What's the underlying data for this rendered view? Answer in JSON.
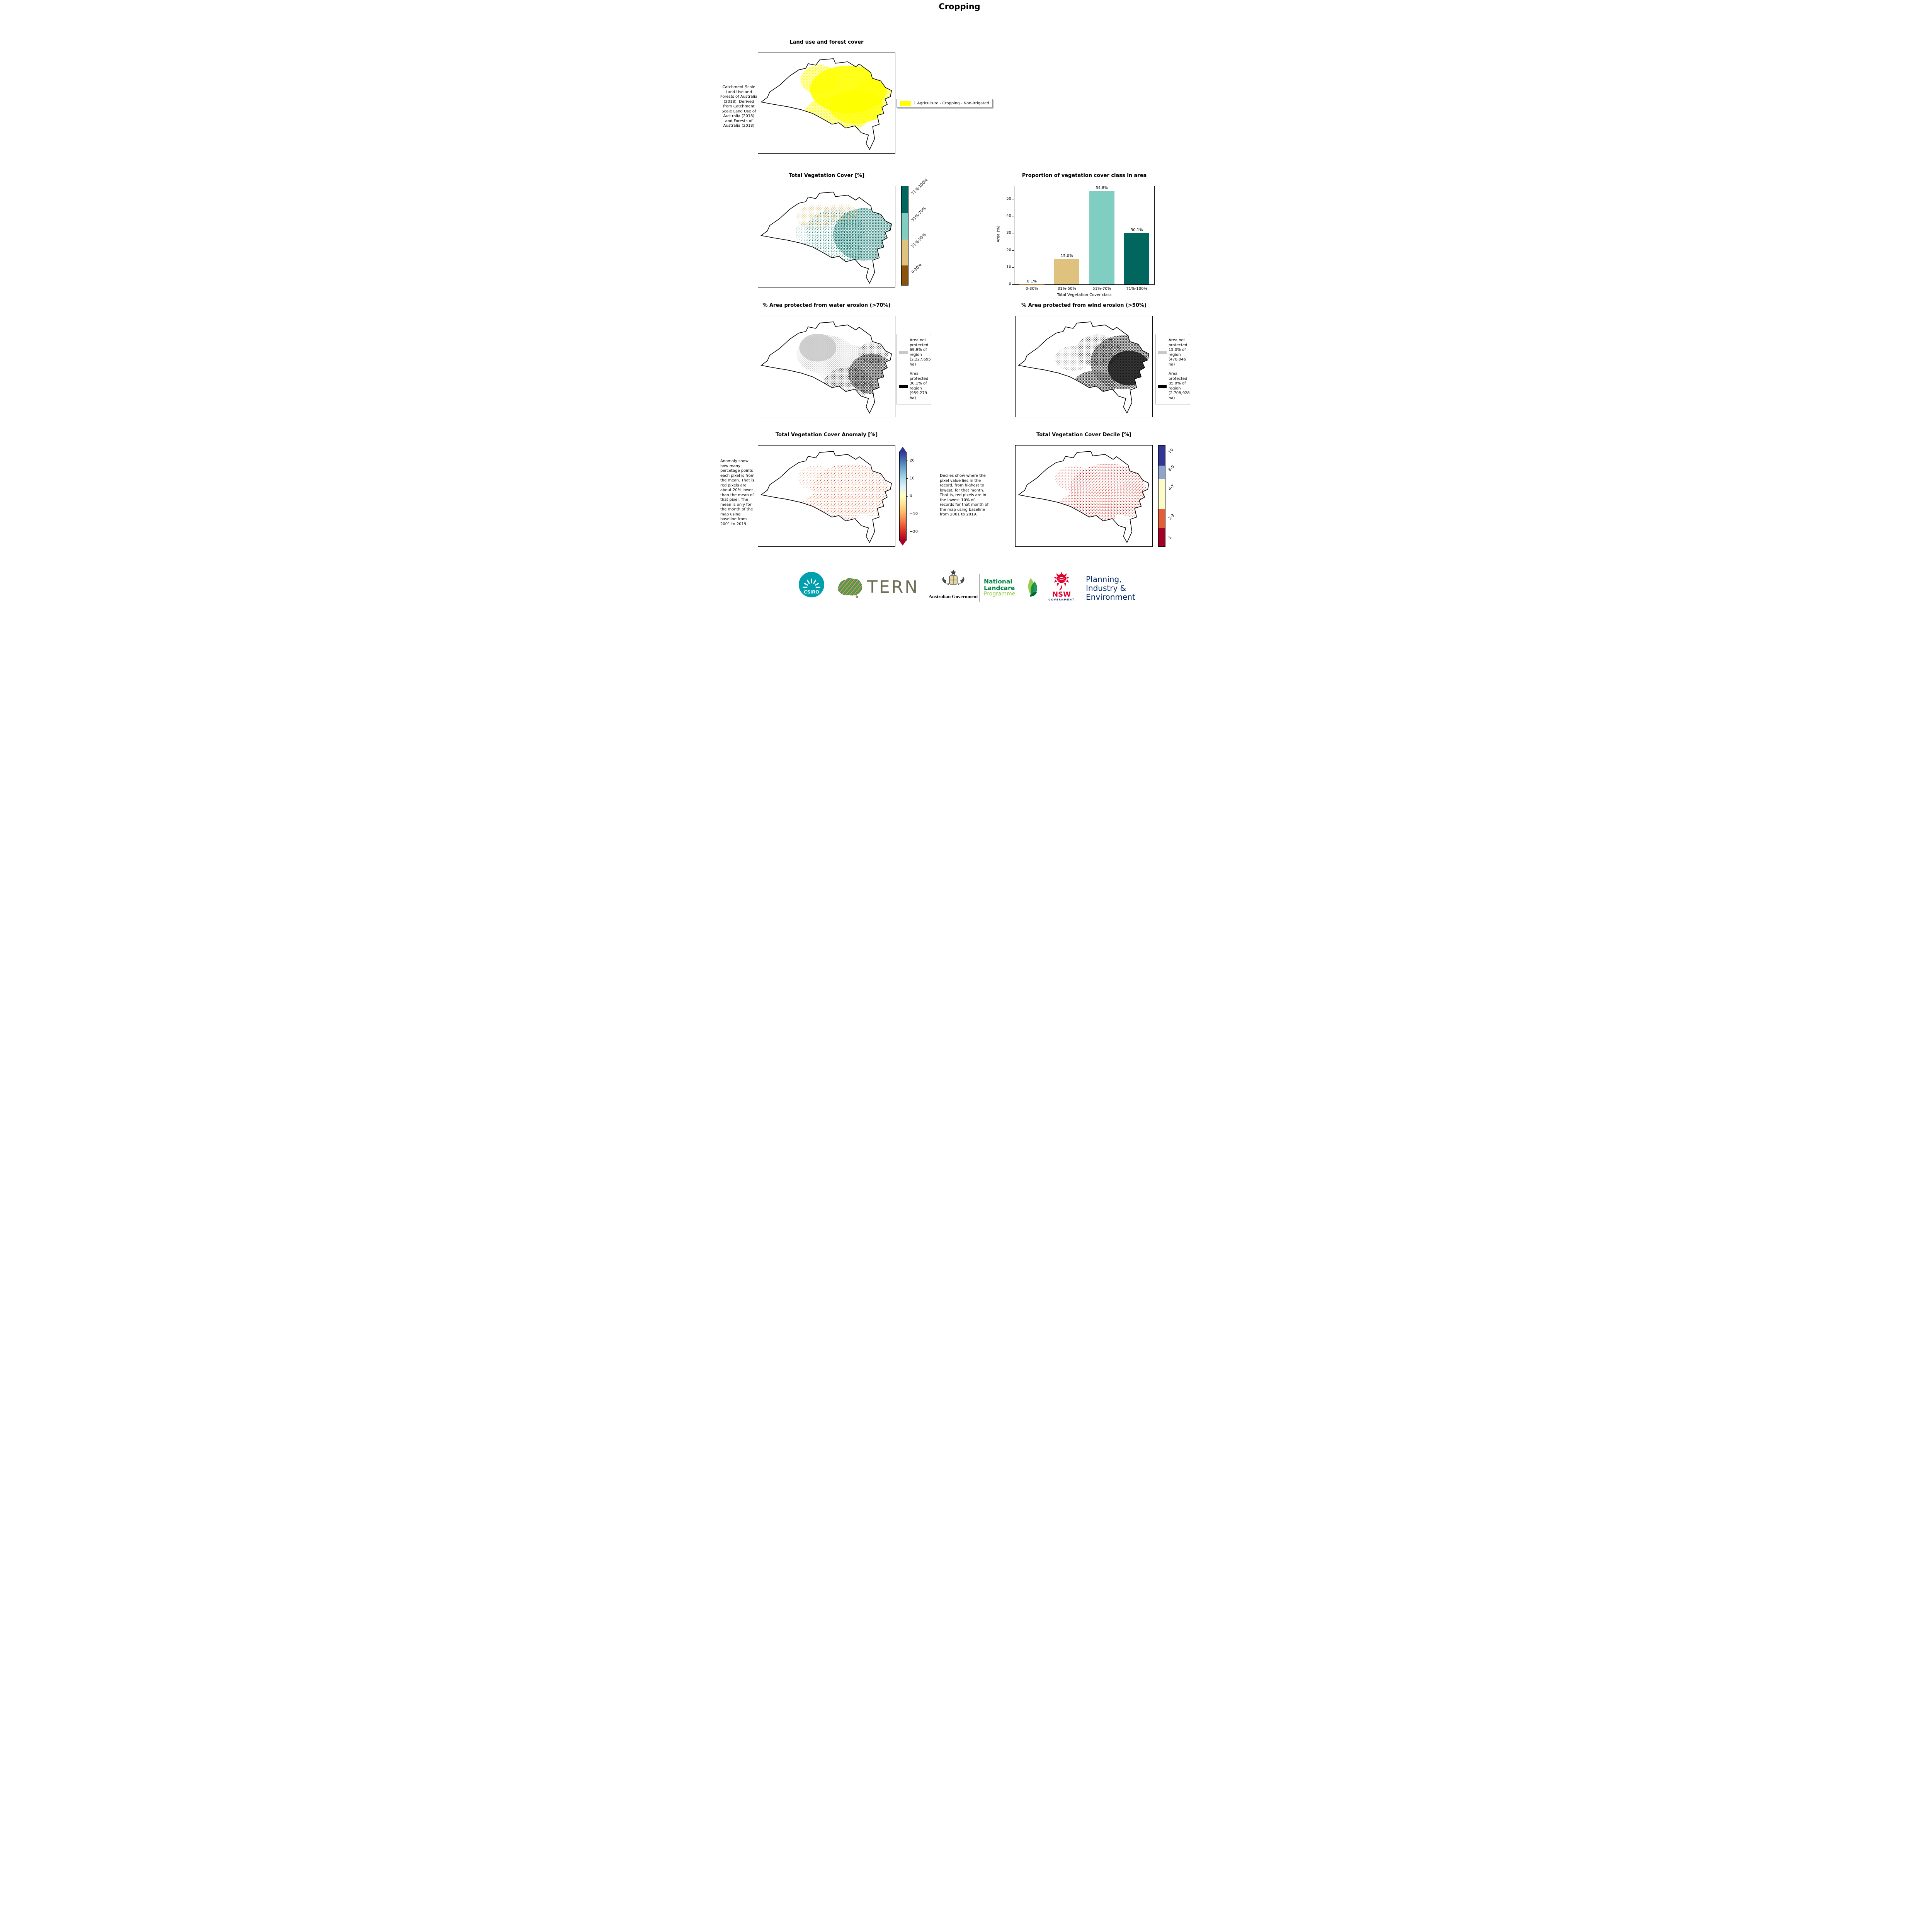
{
  "page": {
    "title": "Cropping"
  },
  "panels": {
    "landuse": {
      "title": "Land use and forest cover",
      "caption": "Catchment Scale Land Use and Forests of Australia (2018). Derived from Catchment Scale Land Use of Australia (2018) and Forests of Australia (2018)",
      "legend": {
        "swatch_color": "#ffff00",
        "label": "1 Agriculture - Cropping - Non-irrigated"
      }
    },
    "veg_cover": {
      "title": "Total Vegetation Cover [%]",
      "colorbar": {
        "segments": [
          {
            "label": "71%-100%",
            "color": "#01665e"
          },
          {
            "label": "51%-70%",
            "color": "#80cdc1"
          },
          {
            "label": "31%-50%",
            "color": "#dfc27d"
          },
          {
            "label": "0-30%",
            "color": "#8c510a"
          }
        ]
      }
    },
    "water_erosion": {
      "title": "% Area protected from water erosion (>70%)",
      "legend": [
        {
          "label": "Area not protected 69.9% of region (2,227,695 ha)",
          "color": "#c8c8c8"
        },
        {
          "label": "Area protected 30.1% of region (959,279 ha)",
          "color": "#000000"
        }
      ]
    },
    "wind_erosion": {
      "title": "% Area protected from wind erosion (>50%)",
      "legend": [
        {
          "label": "Area not protected 15.0% of region (478,046 ha)",
          "color": "#c8c8c8"
        },
        {
          "label": "Area protected 85.0% of region (2,708,928 ha)",
          "color": "#000000"
        }
      ]
    },
    "anomaly": {
      "title": "Total Vegetation Cover Anomaly [%]",
      "caption": "Anomaly show how many percetage points each pixel is from the mean. That is, red pixels are about 20% lower than the mean of that pixel. The mean is only for the month of the map using baseline from 2001 to 2019.",
      "colorbar": {
        "ticks": [
          "20",
          "10",
          "0",
          "−10",
          "−20"
        ],
        "gradient": [
          "#313695",
          "#4575b4",
          "#74add1",
          "#abd9e9",
          "#e0f3f8",
          "#ffffbf",
          "#fee090",
          "#fdae61",
          "#f46d43",
          "#d73027",
          "#a50026"
        ]
      }
    },
    "decile": {
      "title": "Total Vegetation Cover Decile [%]",
      "caption": "Deciles show where the pixel value lies in the record, from highest to lowest, for that month. That is, red pixels are in the lowest 10% of records for that month of the map using baseline from 2001 to 2019.",
      "colorbar": {
        "segments": [
          {
            "label": "10",
            "color": "#313695"
          },
          {
            "label": "8-9",
            "color": "#8fa3cf"
          },
          {
            "label": "4-7",
            "color": "#fdfbc8"
          },
          {
            "label": "2-3",
            "color": "#e35d36"
          },
          {
            "label": "1",
            "color": "#a50026"
          }
        ]
      }
    }
  },
  "chart_data": {
    "type": "bar",
    "title": "Proportion of vegetation cover class in area",
    "categories": [
      "0-30%",
      "31%-50%",
      "51%-70%",
      "71%-100%"
    ],
    "values": [
      0.1,
      15.0,
      54.8,
      30.1
    ],
    "value_labels": [
      "0.1%",
      "15.0%",
      "54.8%",
      "30.1%"
    ],
    "colors": [
      "#8c510a",
      "#dfc27d",
      "#80cdc1",
      "#01665e"
    ],
    "xlabel": "Total Vegetation Cover class",
    "ylabel": "Area (%)",
    "ylim": [
      0,
      57.5
    ],
    "yticks": [
      0,
      10,
      20,
      30,
      40,
      50
    ],
    "grid": false,
    "legend_position": "none"
  },
  "footer": {
    "csiro": {
      "label": "CSIRO",
      "color": "#00a0ae"
    },
    "tern": {
      "label": "TERN",
      "color": "#6e6e55"
    },
    "ausgov": {
      "label": "Australian Government"
    },
    "landcare": {
      "line1": "National",
      "line2": "Landcare",
      "line3": "Programme",
      "green_dark": "#00853f",
      "green_light": "#8dc63f"
    },
    "nsw": {
      "label": "NSW",
      "sublabel": "GOVERNMENT",
      "red": "#e4002b",
      "navy": "#002664"
    },
    "agency": {
      "line1": "Planning,",
      "line2": "Industry &",
      "line3": "Environment",
      "color": "#002664"
    }
  }
}
